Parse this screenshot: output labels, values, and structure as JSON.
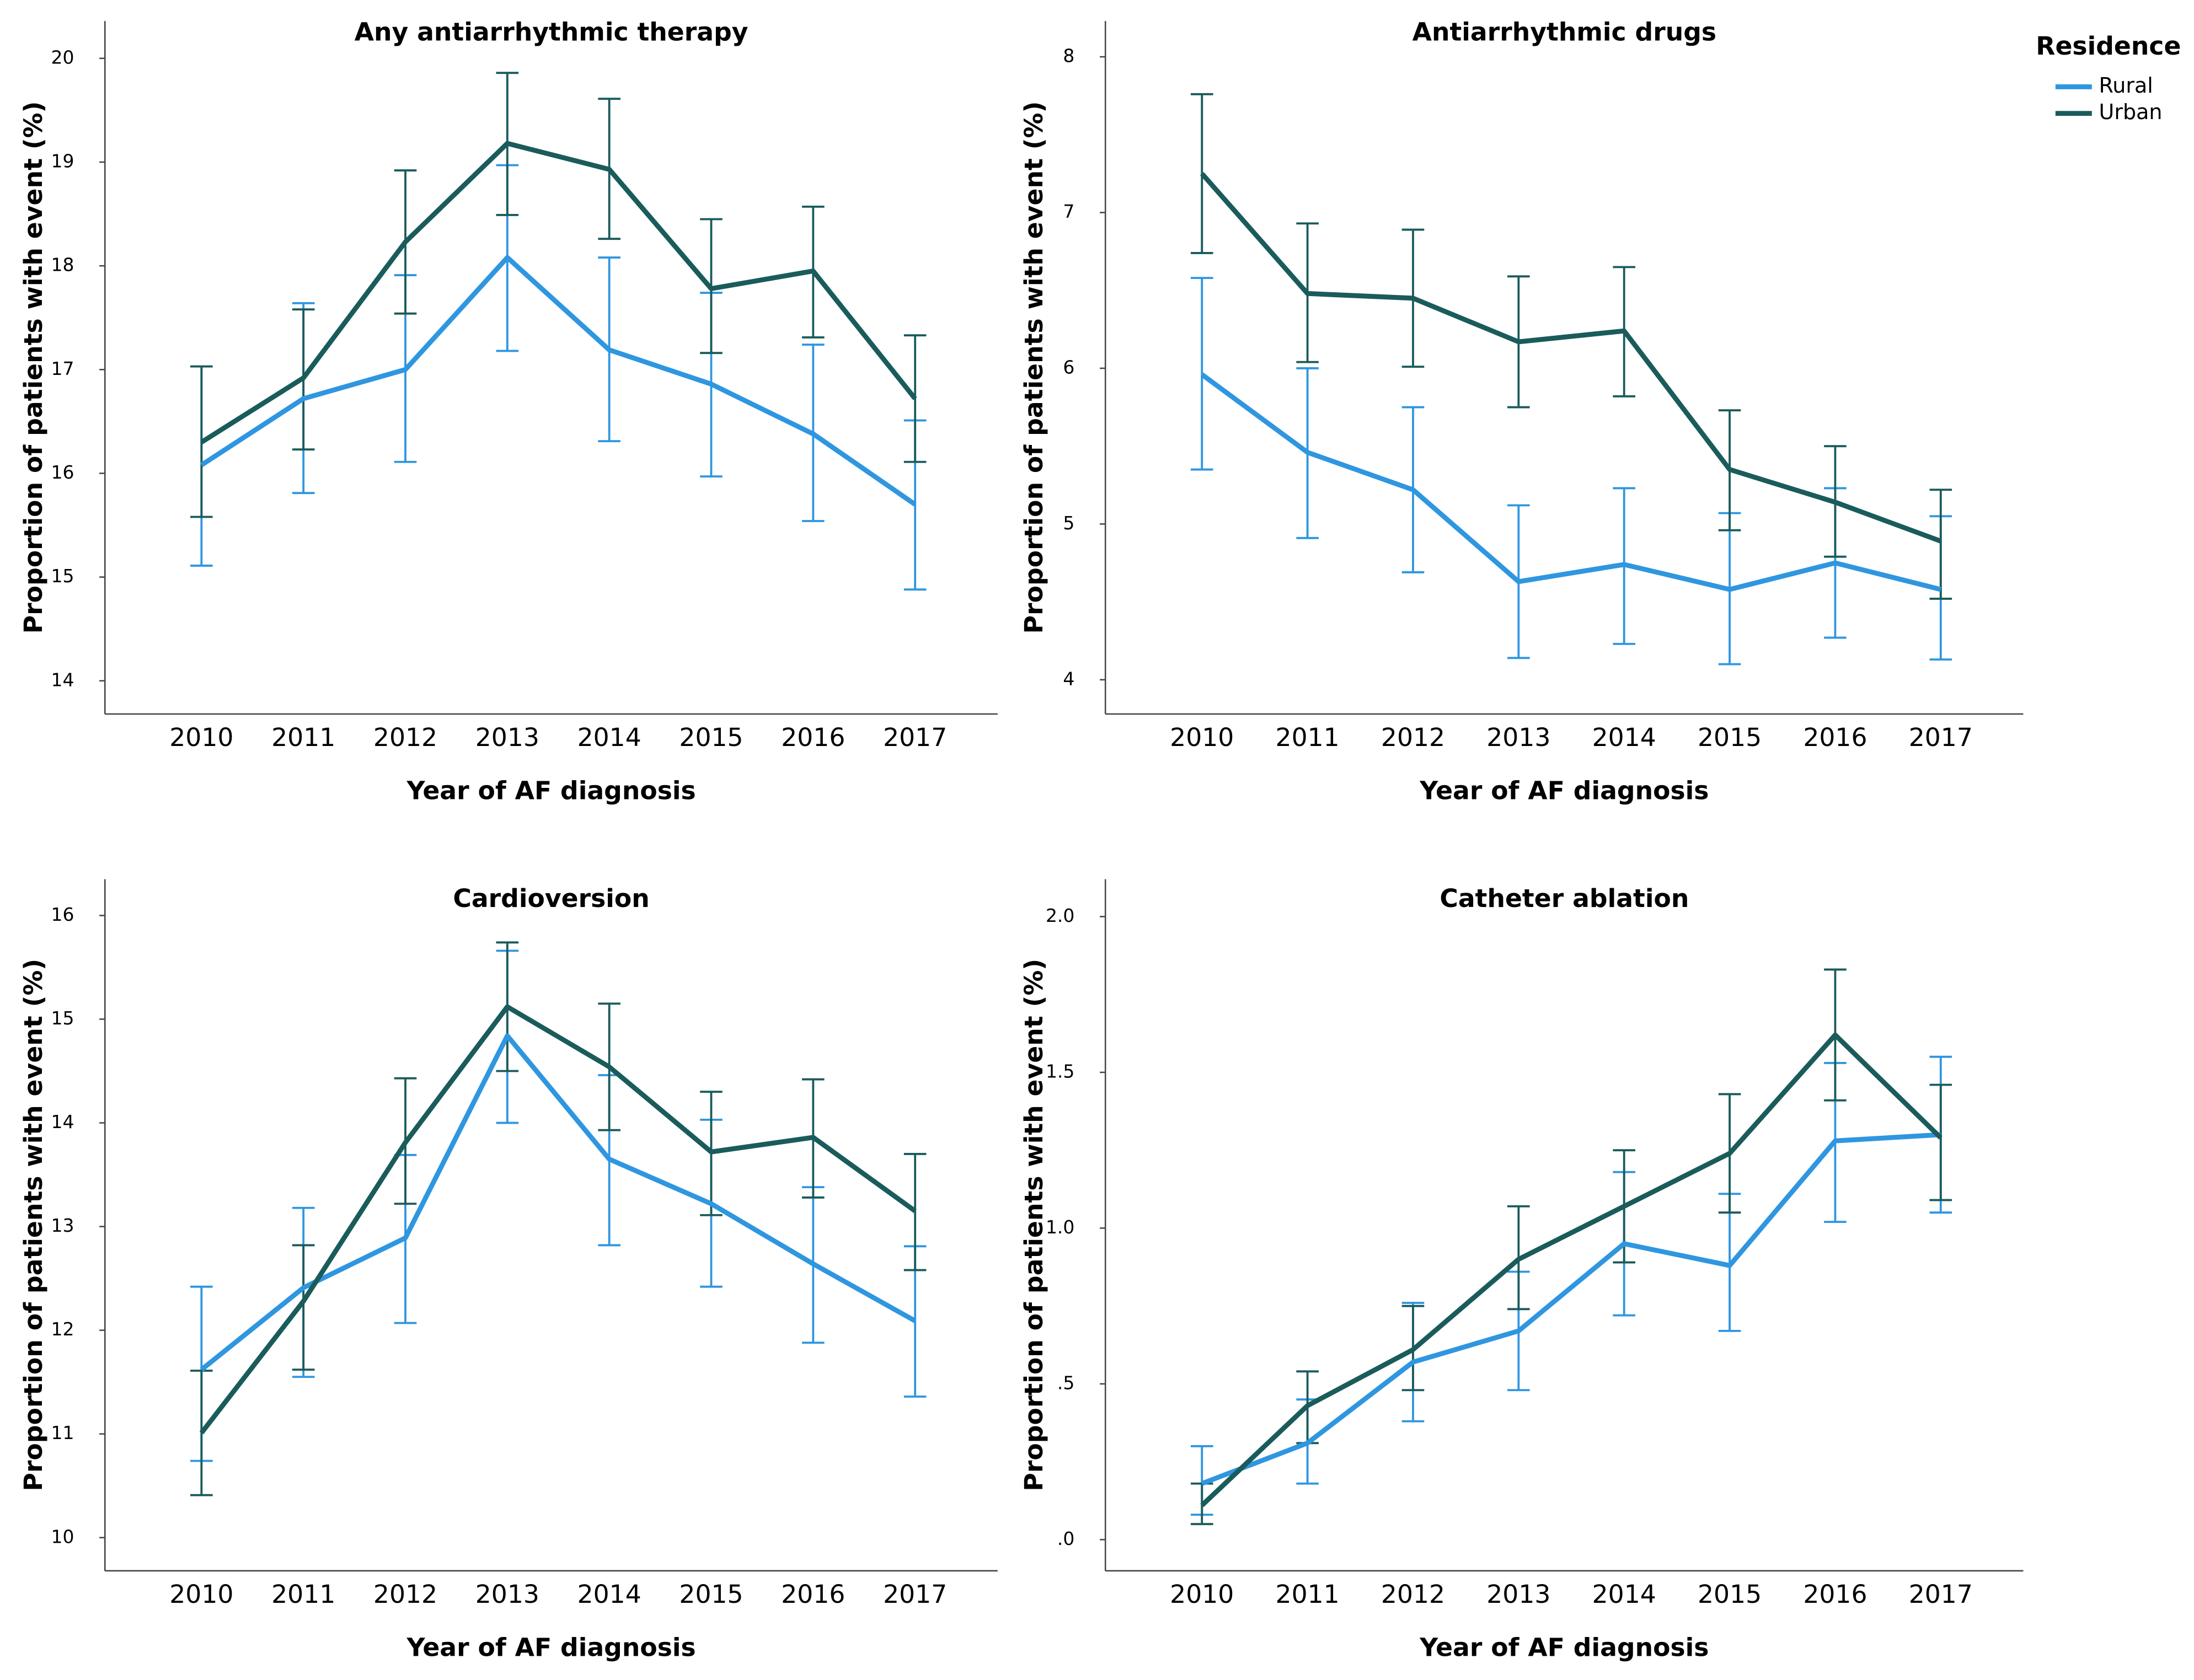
{
  "chart_data": [
    {
      "type": "line",
      "title": "Any antiarrhythmic therapy",
      "x_label": "Year of AF diagnosis",
      "y_label": "Proportion of patients with event (%)",
      "categories": [
        "2010",
        "2011",
        "2012",
        "2013",
        "2014",
        "2015",
        "2016",
        "2017"
      ],
      "ylim": [
        13.68,
        20.36
      ],
      "yticks": [
        14,
        15,
        16,
        17,
        18,
        19,
        20
      ],
      "series": [
        {
          "name": "Rural",
          "color": "#2f96e0",
          "values": [
            16.08,
            16.72,
            17.0,
            18.08,
            17.19,
            16.86,
            16.38,
            15.7
          ],
          "ci_low": [
            15.11,
            15.81,
            16.11,
            17.18,
            16.31,
            15.97,
            15.54,
            14.88
          ],
          "ci_high": [
            17.03,
            17.64,
            17.91,
            18.97,
            18.08,
            17.74,
            17.24,
            16.51
          ]
        },
        {
          "name": "Urban",
          "color": "#1a5b5b",
          "values": [
            16.3,
            16.92,
            18.23,
            19.18,
            18.93,
            17.78,
            17.95,
            16.72
          ],
          "ci_low": [
            15.58,
            16.23,
            17.54,
            18.49,
            18.26,
            17.16,
            17.31,
            16.11
          ],
          "ci_high": [
            17.03,
            17.58,
            18.92,
            19.86,
            19.61,
            18.45,
            18.57,
            17.33
          ]
        }
      ]
    },
    {
      "type": "line",
      "title": "Antiarrhythmic drugs",
      "x_label": "Year of AF diagnosis",
      "y_label": "Proportion of patients with event (%)",
      "legend_title": "Residence",
      "legend": "top-right",
      "categories": [
        "2010",
        "2011",
        "2012",
        "2013",
        "2014",
        "2015",
        "2016",
        "2017"
      ],
      "ylim": [
        3.78,
        8.23
      ],
      "yticks": [
        4,
        5,
        6,
        7,
        8
      ],
      "series": [
        {
          "name": "Rural",
          "color": "#2f96e0",
          "values": [
            5.96,
            5.46,
            5.22,
            4.63,
            4.74,
            4.58,
            4.75,
            4.58
          ],
          "ci_low": [
            5.35,
            4.91,
            4.69,
            4.14,
            4.23,
            4.1,
            4.27,
            4.13
          ],
          "ci_high": [
            6.58,
            6.0,
            5.75,
            5.12,
            5.23,
            5.07,
            5.23,
            5.05
          ]
        },
        {
          "name": "Urban",
          "color": "#1a5b5b",
          "values": [
            7.25,
            6.48,
            6.45,
            6.17,
            6.24,
            5.35,
            5.14,
            4.89
          ],
          "ci_low": [
            6.74,
            6.04,
            6.01,
            5.75,
            5.82,
            4.96,
            4.79,
            4.52
          ],
          "ci_high": [
            7.76,
            6.93,
            6.89,
            6.59,
            6.65,
            5.73,
            5.5,
            5.22
          ]
        }
      ]
    },
    {
      "type": "line",
      "title": "Cardioversion",
      "x_label": "Year of AF diagnosis",
      "y_label": "Proportion of patients with event (%)",
      "categories": [
        "2010",
        "2011",
        "2012",
        "2013",
        "2014",
        "2015",
        "2016",
        "2017"
      ],
      "ylim": [
        9.68,
        16.35
      ],
      "yticks": [
        10,
        11,
        12,
        13,
        14,
        15,
        16
      ],
      "series": [
        {
          "name": "Rural",
          "color": "#2f96e0",
          "values": [
            11.62,
            12.41,
            12.89,
            14.84,
            13.65,
            13.22,
            12.64,
            12.09
          ],
          "ci_low": [
            10.74,
            11.55,
            12.07,
            14.0,
            12.82,
            12.42,
            11.88,
            11.36
          ],
          "ci_high": [
            12.42,
            13.18,
            13.69,
            15.66,
            14.46,
            14.03,
            13.38,
            12.81
          ]
        },
        {
          "name": "Urban",
          "color": "#1a5b5b",
          "values": [
            11.01,
            12.28,
            13.81,
            15.12,
            14.54,
            13.72,
            13.86,
            13.15
          ],
          "ci_low": [
            10.41,
            11.62,
            13.22,
            14.5,
            13.93,
            13.11,
            13.28,
            12.58
          ],
          "ci_high": [
            11.61,
            12.82,
            14.43,
            15.74,
            15.15,
            14.3,
            14.42,
            13.7
          ]
        }
      ]
    },
    {
      "type": "line",
      "title": "Catheter ablation",
      "x_label": "Year of AF diagnosis",
      "y_label": "Proportion of patients with event (%)",
      "categories": [
        "2010",
        "2011",
        "2012",
        "2013",
        "2014",
        "2015",
        "2016",
        "2017"
      ],
      "ylim": [
        -0.1,
        2.12
      ],
      "yticks": [
        {
          "value": 0,
          "label": ".0"
        },
        {
          "value": 0.5,
          "label": ".5"
        },
        {
          "value": 1,
          "label": "1.0"
        },
        1.5,
        {
          "value": 2,
          "label": "2.0"
        }
      ],
      "series": [
        {
          "name": "Rural",
          "color": "#2f96e0",
          "values": [
            0.18,
            0.31,
            0.57,
            0.67,
            0.95,
            0.88,
            1.28,
            1.3
          ],
          "ci_low": [
            0.08,
            0.18,
            0.38,
            0.48,
            0.72,
            0.67,
            1.02,
            1.05
          ],
          "ci_high": [
            0.3,
            0.45,
            0.76,
            0.86,
            1.18,
            1.11,
            1.53,
            1.55
          ]
        },
        {
          "name": "Urban",
          "color": "#1a5b5b",
          "values": [
            0.11,
            0.43,
            0.61,
            0.9,
            1.07,
            1.24,
            1.62,
            1.29
          ],
          "ci_low": [
            0.05,
            0.31,
            0.48,
            0.74,
            0.89,
            1.05,
            1.41,
            1.09
          ],
          "ci_high": [
            0.18,
            0.54,
            0.75,
            1.07,
            1.25,
            1.43,
            1.83,
            1.46
          ]
        }
      ]
    }
  ]
}
